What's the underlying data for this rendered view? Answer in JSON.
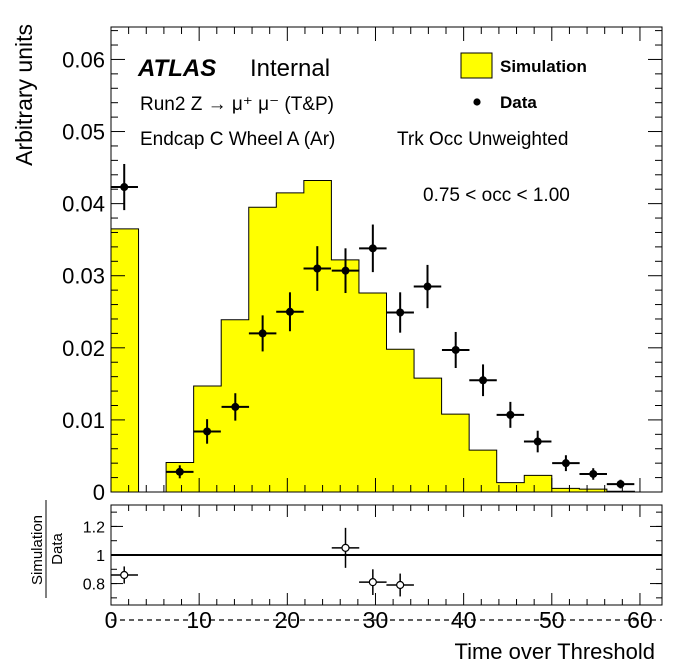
{
  "labels": {
    "atlas": "ATLAS",
    "internal": "Internal",
    "process": "Run2 Z → μ⁺ μ⁻ (T&P)",
    "region": "Endcap C Wheel A (Ar)",
    "weighting": "Trk Occ Unweighted",
    "occ_range": "0.75 < occ < 1.00",
    "legend_sim": "Simulation",
    "legend_data": "Data",
    "ylabel": "Arbitrary units",
    "xlabel": "Time over Threshold",
    "ratio_num": "Simulation",
    "ratio_den": "Data"
  },
  "colors": {
    "simulation_fill": "#ffff00",
    "data_marker": "#000000",
    "axis": "#000000"
  },
  "chart_data": [
    {
      "type": "bar",
      "panel": "main",
      "xlim": [
        0,
        62.5
      ],
      "ylim": [
        0,
        0.0645
      ],
      "xbin_width": 3.125,
      "ylabel": "Arbitrary units",
      "yticks": [
        0,
        0.01,
        0.02,
        0.03,
        0.04,
        0.05,
        0.06
      ],
      "yticklabels": [
        "0",
        "0.01",
        "0.02",
        "0.03",
        "0.04",
        "0.05",
        "0.06"
      ],
      "legend_position": "top-right",
      "series": [
        {
          "name": "Simulation",
          "kind": "histogram",
          "bin_edges": [
            0,
            3.125,
            6.25,
            9.375,
            12.5,
            15.625,
            18.75,
            21.875,
            25,
            28.125,
            31.25,
            34.375,
            37.5,
            40.625,
            43.75,
            46.875,
            50,
            53.125,
            56.25,
            59.375,
            62.5
          ],
          "values": [
            0.0365,
            0.0,
            0.0041,
            0.0147,
            0.0239,
            0.0395,
            0.0415,
            0.0432,
            0.0322,
            0.0276,
            0.0198,
            0.0158,
            0.0108,
            0.0058,
            0.0013,
            0.0023,
            0.0005,
            0.0004,
            0.0001,
            0.0
          ]
        },
        {
          "name": "Data",
          "kind": "points",
          "x": [
            1.5,
            7.8,
            10.9,
            14.1,
            17.2,
            20.3,
            23.4,
            26.6,
            29.7,
            32.8,
            35.9,
            39.1,
            42.2,
            45.3,
            48.4,
            51.6,
            54.7,
            57.8
          ],
          "y": [
            0.0423,
            0.0028,
            0.0084,
            0.0118,
            0.022,
            0.025,
            0.031,
            0.0307,
            0.0338,
            0.0249,
            0.0285,
            0.0197,
            0.0155,
            0.0107,
            0.007,
            0.004,
            0.0025,
            0.0011
          ],
          "yerr": [
            0.0032,
            0.0009,
            0.0017,
            0.0019,
            0.0025,
            0.0027,
            0.0031,
            0.0031,
            0.0033,
            0.0028,
            0.003,
            0.0025,
            0.0022,
            0.0018,
            0.0015,
            0.0011,
            0.0008,
            0.0006
          ],
          "xerr": 1.56
        }
      ]
    },
    {
      "type": "scatter",
      "panel": "ratio",
      "xlim": [
        0,
        62.5
      ],
      "ylim": [
        0.65,
        1.35
      ],
      "xlabel": "Time over Threshold",
      "ylabel": "Simulation / Data",
      "reference_line": 1,
      "xticks": [
        0,
        10,
        20,
        30,
        40,
        50,
        60
      ],
      "xticklabels": [
        "0",
        "10",
        "20",
        "30",
        "40",
        "50",
        "60"
      ],
      "yticks": [
        0.8,
        1.0,
        1.2
      ],
      "yticklabels": [
        "0.8",
        "1",
        "1.2"
      ],
      "series": [
        {
          "name": "Simulation / Data",
          "x": [
            1.5,
            26.6,
            29.7,
            32.8
          ],
          "y": [
            0.86,
            1.05,
            0.81,
            0.79
          ],
          "yerr": [
            0.06,
            0.14,
            0.09,
            0.08
          ],
          "xerr": 1.56
        }
      ]
    }
  ]
}
